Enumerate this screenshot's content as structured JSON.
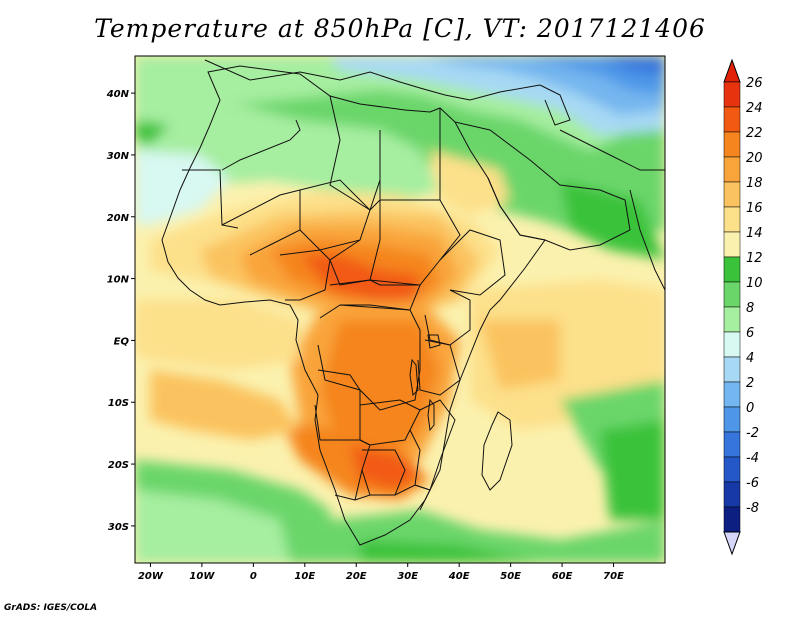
{
  "title": "Temperature at 850hPa [C], VT: 2017121406",
  "credit": "GrADS: IGES/COLA",
  "map": {
    "lon_range": [
      -23,
      80
    ],
    "lat_range": [
      -36,
      46
    ],
    "lon_ticks": [
      {
        "value": -20,
        "label": "20W"
      },
      {
        "value": -10,
        "label": "10W"
      },
      {
        "value": 0,
        "label": "0"
      },
      {
        "value": 10,
        "label": "10E"
      },
      {
        "value": 20,
        "label": "20E"
      },
      {
        "value": 30,
        "label": "30E"
      },
      {
        "value": 40,
        "label": "40E"
      },
      {
        "value": 50,
        "label": "50E"
      },
      {
        "value": 60,
        "label": "60E"
      },
      {
        "value": 70,
        "label": "70E"
      }
    ],
    "lat_ticks": [
      {
        "value": 40,
        "label": "40N"
      },
      {
        "value": 30,
        "label": "30N"
      },
      {
        "value": 20,
        "label": "20N"
      },
      {
        "value": 10,
        "label": "10N"
      },
      {
        "value": 0,
        "label": "EQ"
      },
      {
        "value": -10,
        "label": "10S"
      },
      {
        "value": -20,
        "label": "20S"
      },
      {
        "value": -30,
        "label": "30S"
      }
    ]
  },
  "colorbar": {
    "levels": [
      {
        "label": "26",
        "color": "#e8330f"
      },
      {
        "label": "24",
        "color": "#f25a14"
      },
      {
        "label": "22",
        "color": "#f5851e"
      },
      {
        "label": "20",
        "color": "#f9a43a"
      },
      {
        "label": "18",
        "color": "#fbc35f"
      },
      {
        "label": "16",
        "color": "#fde08a"
      },
      {
        "label": "14",
        "color": "#fbf1ae"
      },
      {
        "label": "12",
        "color": "#3bc23b"
      },
      {
        "label": "10",
        "color": "#6ad66a"
      },
      {
        "label": "8",
        "color": "#a6eea0"
      },
      {
        "label": "6",
        "color": "#d8f8f2"
      },
      {
        "label": "4",
        "color": "#a7d9f4"
      },
      {
        "label": "2",
        "color": "#74b6ef"
      },
      {
        "label": "0",
        "color": "#4d96e8"
      },
      {
        "label": "-2",
        "color": "#3575dc"
      },
      {
        "label": "-4",
        "color": "#2457c8"
      },
      {
        "label": "-6",
        "color": "#1739a8"
      },
      {
        "label": "-8",
        "color": "#0d1f80"
      }
    ],
    "top_color": "#e22208",
    "bottom_color": "#d6d6fb"
  }
}
